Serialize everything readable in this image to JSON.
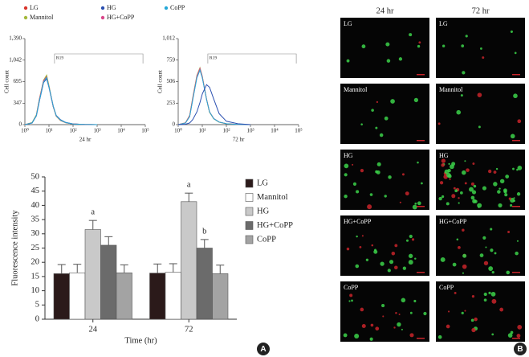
{
  "chart_data": [
    {
      "type": "line",
      "x_scale": "log",
      "xlabel": "24 hr",
      "ylabel": "Cell count",
      "xlim": [
        1,
        100000
      ],
      "xticks": [
        {
          "value": 1,
          "label": "10⁰"
        },
        {
          "value": 10,
          "label": "10¹"
        },
        {
          "value": 100,
          "label": "10²"
        },
        {
          "value": 1000,
          "label": "10³"
        },
        {
          "value": 10000,
          "label": "10⁴"
        },
        {
          "value": 100000,
          "label": "10⁵"
        }
      ],
      "ylim": [
        0,
        1390
      ],
      "yticks": [
        0,
        347,
        695,
        {
          "value": 1042,
          "label": "1,042"
        },
        {
          "value": 1390,
          "label": "1,390"
        }
      ],
      "gate": {
        "label": "R19",
        "range": [
          17,
          80000
        ]
      },
      "x": [
        1,
        2,
        3,
        4,
        6,
        8,
        10,
        15,
        20,
        30,
        50,
        100,
        300,
        1000
      ],
      "series": [
        {
          "name": "LG",
          "color": "#d9342b",
          "values": [
            0,
            30,
            150,
            400,
            700,
            780,
            620,
            300,
            140,
            70,
            30,
            10,
            3,
            0
          ]
        },
        {
          "name": "Mannitol",
          "color": "#a3b83a",
          "values": [
            0,
            35,
            160,
            420,
            720,
            800,
            630,
            290,
            135,
            65,
            28,
            9,
            3,
            0
          ]
        },
        {
          "name": "HG",
          "color": "#2a4fb0",
          "values": [
            0,
            25,
            140,
            380,
            680,
            740,
            600,
            290,
            150,
            80,
            35,
            12,
            4,
            0
          ]
        },
        {
          "name": "HG+CoPP",
          "color": "#d9468a",
          "values": [
            0,
            30,
            150,
            410,
            710,
            770,
            615,
            295,
            140,
            70,
            30,
            10,
            3,
            0
          ]
        },
        {
          "name": "CoPP",
          "color": "#25a8d8",
          "values": [
            0,
            28,
            145,
            390,
            690,
            760,
            610,
            300,
            145,
            75,
            32,
            11,
            3,
            0
          ]
        }
      ]
    },
    {
      "type": "line",
      "x_scale": "log",
      "xlabel": "72 hr",
      "ylabel": "Cell count",
      "xlim": [
        1,
        100000
      ],
      "xticks": [
        {
          "value": 1,
          "label": "10⁰"
        },
        {
          "value": 10,
          "label": "10¹"
        },
        {
          "value": 100,
          "label": "10²"
        },
        {
          "value": 1000,
          "label": "10³"
        },
        {
          "value": 10000,
          "label": "10⁴"
        },
        {
          "value": 100000,
          "label": "10⁵"
        }
      ],
      "ylim": [
        0,
        1012
      ],
      "yticks": [
        0,
        253,
        506,
        759,
        {
          "value": 1012,
          "label": "1,012"
        }
      ],
      "gate": {
        "label": "R19",
        "range": [
          17,
          80000
        ]
      },
      "x": [
        1,
        2,
        3,
        4,
        6,
        8,
        10,
        15,
        20,
        30,
        50,
        100,
        300,
        1000
      ],
      "series": [
        {
          "name": "LG",
          "color": "#d9342b",
          "values": [
            0,
            20,
            100,
            300,
            560,
            650,
            560,
            300,
            150,
            70,
            30,
            10,
            3,
            0
          ]
        },
        {
          "name": "Mannitol",
          "color": "#a3b83a",
          "values": [
            0,
            22,
            110,
            320,
            580,
            670,
            570,
            300,
            145,
            68,
            28,
            9,
            3,
            0
          ]
        },
        {
          "name": "HG+CoPP",
          "color": "#d9468a",
          "values": [
            0,
            20,
            105,
            310,
            570,
            660,
            565,
            300,
            150,
            72,
            30,
            10,
            3,
            0
          ]
        },
        {
          "name": "CoPP",
          "color": "#25a8d8",
          "values": [
            0,
            18,
            95,
            290,
            550,
            640,
            550,
            295,
            150,
            70,
            30,
            10,
            3,
            0
          ]
        },
        {
          "name": "HG",
          "color": "#2a4fb0",
          "values": [
            0,
            5,
            20,
            60,
            150,
            260,
            360,
            470,
            440,
            300,
            130,
            40,
            10,
            0
          ]
        }
      ]
    },
    {
      "type": "bar",
      "xlabel": "Time (hr)",
      "ylabel": "Fluorescence intensity",
      "categories": [
        "24",
        "72"
      ],
      "ylim": [
        0,
        50
      ],
      "yticks": [
        0,
        5,
        10,
        15,
        20,
        25,
        30,
        35,
        40,
        45,
        50
      ],
      "series": [
        {
          "name": "LG",
          "color": "#2b1a1a",
          "values": [
            16,
            16.2
          ],
          "errors": [
            3.2,
            3.2
          ]
        },
        {
          "name": "Mannitol",
          "color": "#ffffff",
          "values": [
            16.3,
            16.5
          ],
          "errors": [
            3,
            3
          ]
        },
        {
          "name": "HG",
          "color": "#c9c9c9",
          "values": [
            31.5,
            41.3
          ],
          "errors": [
            3.2,
            3
          ]
        },
        {
          "name": "HG+CoPP",
          "color": "#6b6b6b",
          "values": [
            26,
            25
          ],
          "errors": [
            3,
            3
          ]
        },
        {
          "name": "CoPP",
          "color": "#a3a3a3",
          "values": [
            16.3,
            16
          ],
          "errors": [
            2.8,
            3
          ]
        }
      ],
      "annotations": [
        {
          "text": "a",
          "category": 0,
          "series": 2
        },
        {
          "text": "a",
          "category": 1,
          "series": 2
        },
        {
          "text": "b",
          "category": 1,
          "series": 3
        }
      ]
    }
  ],
  "panel_labels": [
    "A",
    "B"
  ],
  "microscopy": {
    "columns": [
      "24 hr",
      "72 hr"
    ],
    "rows": [
      "LG",
      "Mannitol",
      "HG",
      "HG+CoPP",
      "CoPP"
    ]
  }
}
